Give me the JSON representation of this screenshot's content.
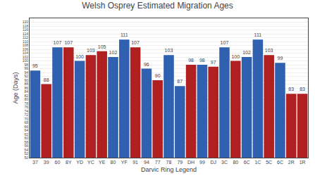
{
  "chart_data": {
    "type": "bar",
    "title": "Welsh Osprey Estimated Migration Ages",
    "xlabel": "Darvic Ring Legend",
    "ylabel": "Age (Days)",
    "categories": [
      "37",
      "39",
      "60",
      "8Y",
      "YD",
      "YC",
      "YE",
      "80",
      "YF",
      "91",
      "94",
      "77",
      "78",
      "79",
      "DH",
      "99",
      "DJ",
      "3C",
      "80",
      "6C",
      "1C",
      "5C",
      "6C",
      "2R",
      "1R"
    ],
    "values": [
      95,
      88,
      107,
      107,
      100,
      103,
      105,
      102,
      111,
      107,
      96,
      90,
      103,
      87,
      98,
      98,
      97,
      107,
      100,
      102,
      111,
      103,
      99,
      83,
      83
    ],
    "colors": [
      "#3060b0",
      "#b02020",
      "#3060b0",
      "#b02020",
      "#3060b0",
      "#b02020",
      "#b02020",
      "#3060b0",
      "#3060b0",
      "#b02020",
      "#3060b0",
      "#b02020",
      "#3060b0",
      "#3060b0",
      "#b02020",
      "#3060b0",
      "#b02020",
      "#3060b0",
      "#b02020",
      "#3060b0",
      "#3060b0",
      "#b02020",
      "#3060b0",
      "#b02020",
      "#b02020"
    ],
    "ylim": [
      50,
      122
    ],
    "yticks": [
      50,
      52,
      54,
      56,
      58,
      60,
      62,
      64,
      66,
      68,
      70,
      72,
      74,
      76,
      78,
      80,
      82,
      84,
      86,
      88,
      90,
      92,
      94,
      96,
      98,
      100,
      102,
      104,
      106,
      108,
      110,
      112,
      114,
      116,
      118,
      120
    ],
    "grid": true,
    "data_labels": true
  }
}
